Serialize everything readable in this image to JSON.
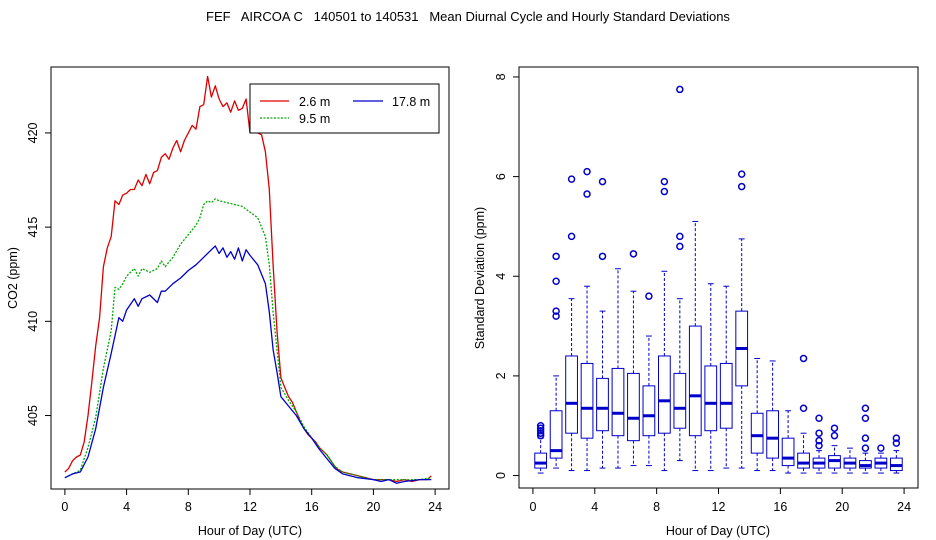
{
  "title": "FEF   AIRCOA C   140501 to 140531   Mean Diurnal Cycle and Hourly Standard Deviations",
  "chart_data": [
    {
      "type": "line",
      "xlabel": "Hour of Day (UTC)",
      "ylabel": "CO2 (ppm)",
      "xlim": [
        -0.9,
        24.9
      ],
      "ylim": [
        401.1,
        423.5
      ],
      "xticks": [
        "0",
        "4",
        "8",
        "12",
        "16",
        "20",
        "24"
      ],
      "yticks": [
        "405",
        "410",
        "415",
        "420"
      ],
      "legend_position": "top-right",
      "series": [
        {
          "name": "2.6 m",
          "color": "#dd0000",
          "style": "solid",
          "points": [
            [
              0,
              402.0
            ],
            [
              0.25,
              402.2
            ],
            [
              0.5,
              402.6
            ],
            [
              0.75,
              402.8
            ],
            [
              1,
              402.9
            ],
            [
              1.25,
              403.6
            ],
            [
              1.5,
              405.0
            ],
            [
              1.75,
              406.8
            ],
            [
              2,
              408.7
            ],
            [
              2.25,
              410.2
            ],
            [
              2.5,
              412.9
            ],
            [
              2.75,
              413.9
            ],
            [
              3,
              414.5
            ],
            [
              3.25,
              416.4
            ],
            [
              3.5,
              416.2
            ],
            [
              3.75,
              416.7
            ],
            [
              4,
              416.8
            ],
            [
              4.25,
              417.0
            ],
            [
              4.5,
              417.0
            ],
            [
              4.75,
              417.5
            ],
            [
              5,
              417.2
            ],
            [
              5.25,
              417.8
            ],
            [
              5.5,
              417.3
            ],
            [
              5.75,
              417.9
            ],
            [
              6,
              418.0
            ],
            [
              6.25,
              418.7
            ],
            [
              6.5,
              418.9
            ],
            [
              6.75,
              418.6
            ],
            [
              7,
              419.2
            ],
            [
              7.25,
              419.6
            ],
            [
              7.5,
              419.0
            ],
            [
              7.75,
              419.6
            ],
            [
              8,
              420.0
            ],
            [
              8.25,
              420.4
            ],
            [
              8.5,
              420.2
            ],
            [
              8.75,
              421.4
            ],
            [
              9,
              421.5
            ],
            [
              9.25,
              423.0
            ],
            [
              9.5,
              421.9
            ],
            [
              9.75,
              422.5
            ],
            [
              10,
              421.8
            ],
            [
              10.25,
              421.4
            ],
            [
              10.5,
              421.6
            ],
            [
              10.75,
              421.1
            ],
            [
              11,
              421.7
            ],
            [
              11.25,
              421.2
            ],
            [
              11.5,
              421.3
            ],
            [
              11.75,
              421.8
            ],
            [
              12,
              420.0
            ],
            [
              12.25,
              420.3
            ],
            [
              12.5,
              420.0
            ],
            [
              12.75,
              419.9
            ],
            [
              13,
              419.0
            ],
            [
              13.25,
              417.0
            ],
            [
              13.5,
              413.0
            ],
            [
              13.75,
              409.5
            ],
            [
              14,
              407.0
            ],
            [
              14.25,
              406.5
            ],
            [
              14.5,
              406.0
            ],
            [
              14.75,
              405.7
            ],
            [
              15,
              405.2
            ],
            [
              15.25,
              404.7
            ],
            [
              15.5,
              404.3
            ],
            [
              15.75,
              404.0
            ],
            [
              16,
              403.8
            ],
            [
              16.25,
              403.6
            ],
            [
              16.5,
              403.3
            ],
            [
              16.75,
              403.1
            ],
            [
              17,
              402.9
            ],
            [
              17.25,
              402.6
            ],
            [
              17.5,
              402.3
            ],
            [
              17.75,
              402.1
            ],
            [
              18,
              402.0
            ],
            [
              18.5,
              401.9
            ],
            [
              19,
              401.8
            ],
            [
              19.5,
              401.7
            ],
            [
              20,
              401.6
            ],
            [
              20.5,
              401.6
            ],
            [
              21,
              401.6
            ],
            [
              21.5,
              401.5
            ],
            [
              22,
              401.6
            ],
            [
              22.5,
              401.5
            ],
            [
              23,
              401.6
            ],
            [
              23.5,
              401.6
            ],
            [
              23.75,
              401.8
            ]
          ]
        },
        {
          "name": "9.5 m",
          "color": "#00aa00",
          "style": "dashed",
          "points": [
            [
              0,
              401.7
            ],
            [
              0.5,
              401.9
            ],
            [
              1,
              402.1
            ],
            [
              1.5,
              403.3
            ],
            [
              2,
              404.9
            ],
            [
              2.5,
              407.5
            ],
            [
              3,
              409.5
            ],
            [
              3.25,
              411.8
            ],
            [
              3.5,
              411.7
            ],
            [
              3.75,
              412.0
            ],
            [
              4,
              412.4
            ],
            [
              4.5,
              412.8
            ],
            [
              4.75,
              412.4
            ],
            [
              5,
              412.8
            ],
            [
              5.5,
              412.6
            ],
            [
              6,
              412.8
            ],
            [
              6.25,
              413.2
            ],
            [
              6.5,
              412.9
            ],
            [
              7,
              413.4
            ],
            [
              7.5,
              414.1
            ],
            [
              8,
              414.6
            ],
            [
              8.5,
              415.1
            ],
            [
              8.75,
              415.5
            ],
            [
              9,
              416.2
            ],
            [
              9.25,
              416.4
            ],
            [
              9.5,
              416.3
            ],
            [
              9.75,
              416.5
            ],
            [
              10,
              416.4
            ],
            [
              10.5,
              416.3
            ],
            [
              11,
              416.2
            ],
            [
              11.5,
              416.1
            ],
            [
              12,
              415.8
            ],
            [
              12.5,
              415.5
            ],
            [
              13,
              414.5
            ],
            [
              13.25,
              413.0
            ],
            [
              13.5,
              410.5
            ],
            [
              13.75,
              408.5
            ],
            [
              14,
              406.5
            ],
            [
              14.5,
              405.8
            ],
            [
              15,
              405.2
            ],
            [
              15.5,
              404.4
            ],
            [
              16,
              403.8
            ],
            [
              16.5,
              403.3
            ],
            [
              17,
              402.9
            ],
            [
              17.5,
              402.3
            ],
            [
              18,
              402.0
            ],
            [
              19,
              401.8
            ],
            [
              20,
              401.6
            ],
            [
              21,
              401.6
            ],
            [
              22,
              401.6
            ],
            [
              23,
              401.6
            ],
            [
              23.75,
              401.7
            ]
          ]
        },
        {
          "name": "17.8 m",
          "color": "#0000cc",
          "style": "solid",
          "points": [
            [
              0,
              401.7
            ],
            [
              0.5,
              401.9
            ],
            [
              1,
              402.0
            ],
            [
              1.5,
              402.8
            ],
            [
              2,
              404.3
            ],
            [
              2.5,
              406.5
            ],
            [
              3,
              408.3
            ],
            [
              3.5,
              410.2
            ],
            [
              3.75,
              410.0
            ],
            [
              4,
              410.6
            ],
            [
              4.5,
              411.2
            ],
            [
              4.75,
              410.8
            ],
            [
              5,
              411.2
            ],
            [
              5.5,
              411.4
            ],
            [
              6,
              411.0
            ],
            [
              6.25,
              411.6
            ],
            [
              6.5,
              411.6
            ],
            [
              7,
              412.0
            ],
            [
              7.5,
              412.3
            ],
            [
              8,
              412.7
            ],
            [
              8.5,
              413.0
            ],
            [
              9,
              413.4
            ],
            [
              9.5,
              413.8
            ],
            [
              9.75,
              414.0
            ],
            [
              10,
              413.6
            ],
            [
              10.25,
              413.9
            ],
            [
              10.5,
              413.4
            ],
            [
              10.75,
              413.7
            ],
            [
              11,
              413.3
            ],
            [
              11.25,
              413.9
            ],
            [
              11.5,
              413.2
            ],
            [
              11.75,
              413.8
            ],
            [
              12,
              413.5
            ],
            [
              12.5,
              413.0
            ],
            [
              13,
              412.0
            ],
            [
              13.25,
              410.5
            ],
            [
              13.5,
              408.5
            ],
            [
              13.75,
              407.3
            ],
            [
              14,
              406.0
            ],
            [
              14.5,
              405.5
            ],
            [
              15,
              405.0
            ],
            [
              15.5,
              404.3
            ],
            [
              16,
              403.8
            ],
            [
              16.5,
              403.2
            ],
            [
              17,
              402.7
            ],
            [
              17.5,
              402.2
            ],
            [
              18,
              401.9
            ],
            [
              19,
              401.7
            ],
            [
              20,
              401.6
            ],
            [
              20.5,
              401.5
            ],
            [
              21,
              401.6
            ],
            [
              21.5,
              401.4
            ],
            [
              22,
              401.5
            ],
            [
              23,
              401.6
            ],
            [
              23.75,
              401.6
            ]
          ]
        }
      ]
    },
    {
      "type": "box",
      "xlabel": "Hour of Day (UTC)",
      "ylabel": "Standard Deviation (ppm)",
      "xlim": [
        -0.9,
        24.9
      ],
      "ylim": [
        -0.25,
        8.2
      ],
      "xticks": [
        "0",
        "4",
        "8",
        "12",
        "16",
        "20",
        "24"
      ],
      "yticks": [
        "0",
        "2",
        "4",
        "6",
        "8"
      ],
      "color": "#0000cc",
      "boxes": [
        {
          "hour": 0.5,
          "min": 0.05,
          "q1": 0.15,
          "median": 0.25,
          "q3": 0.45,
          "max": 0.75,
          "outliers": [
            0.8,
            0.85,
            0.9,
            0.95,
            1.0
          ]
        },
        {
          "hour": 1.5,
          "min": 0.15,
          "q1": 0.35,
          "median": 0.5,
          "q3": 1.3,
          "max": 2.0,
          "outliers": [
            3.2,
            3.3,
            3.9,
            4.4
          ]
        },
        {
          "hour": 2.5,
          "min": 0.1,
          "q1": 0.85,
          "median": 1.45,
          "q3": 2.4,
          "max": 3.55,
          "outliers": [
            4.8,
            5.95
          ]
        },
        {
          "hour": 3.5,
          "min": 0.1,
          "q1": 0.75,
          "median": 1.35,
          "q3": 2.25,
          "max": 3.8,
          "outliers": [
            5.65,
            6.1
          ]
        },
        {
          "hour": 4.5,
          "min": 0.15,
          "q1": 0.9,
          "median": 1.35,
          "q3": 1.95,
          "max": 3.3,
          "outliers": [
            4.4,
            5.9
          ]
        },
        {
          "hour": 5.5,
          "min": 0.15,
          "q1": 0.8,
          "median": 1.25,
          "q3": 2.15,
          "max": 4.15,
          "outliers": []
        },
        {
          "hour": 6.5,
          "min": 0.2,
          "q1": 0.7,
          "median": 1.15,
          "q3": 2.05,
          "max": 3.7,
          "outliers": [
            4.45
          ]
        },
        {
          "hour": 7.5,
          "min": 0.2,
          "q1": 0.8,
          "median": 1.2,
          "q3": 1.8,
          "max": 2.8,
          "outliers": [
            3.6
          ]
        },
        {
          "hour": 8.5,
          "min": 0.1,
          "q1": 0.85,
          "median": 1.5,
          "q3": 2.4,
          "max": 4.1,
          "outliers": [
            5.7,
            5.9
          ]
        },
        {
          "hour": 9.5,
          "min": 0.3,
          "q1": 0.95,
          "median": 1.35,
          "q3": 2.05,
          "max": 3.55,
          "outliers": [
            4.6,
            4.8,
            7.75
          ]
        },
        {
          "hour": 10.5,
          "min": 0.1,
          "q1": 0.8,
          "median": 1.6,
          "q3": 3.0,
          "max": 5.1,
          "outliers": []
        },
        {
          "hour": 11.5,
          "min": 0.1,
          "q1": 0.9,
          "median": 1.45,
          "q3": 2.2,
          "max": 3.85,
          "outliers": []
        },
        {
          "hour": 12.5,
          "min": 0.15,
          "q1": 0.95,
          "median": 1.45,
          "q3": 2.25,
          "max": 3.8,
          "outliers": []
        },
        {
          "hour": 13.5,
          "min": 0.15,
          "q1": 1.8,
          "median": 2.55,
          "q3": 3.3,
          "max": 4.75,
          "outliers": [
            5.8,
            6.05
          ]
        },
        {
          "hour": 14.5,
          "min": 0.1,
          "q1": 0.45,
          "median": 0.8,
          "q3": 1.25,
          "max": 2.35,
          "outliers": []
        },
        {
          "hour": 15.5,
          "min": 0.1,
          "q1": 0.35,
          "median": 0.75,
          "q3": 1.3,
          "max": 2.3,
          "outliers": []
        },
        {
          "hour": 16.5,
          "min": 0.05,
          "q1": 0.2,
          "median": 0.35,
          "q3": 0.75,
          "max": 1.3,
          "outliers": []
        },
        {
          "hour": 17.5,
          "min": 0.05,
          "q1": 0.15,
          "median": 0.25,
          "q3": 0.45,
          "max": 0.85,
          "outliers": [
            1.35,
            2.35
          ]
        },
        {
          "hour": 18.5,
          "min": 0.05,
          "q1": 0.15,
          "median": 0.25,
          "q3": 0.35,
          "max": 0.5,
          "outliers": [
            0.6,
            0.7,
            0.85,
            1.15
          ]
        },
        {
          "hour": 19.5,
          "min": 0.05,
          "q1": 0.15,
          "median": 0.3,
          "q3": 0.4,
          "max": 0.6,
          "outliers": [
            0.8,
            0.95
          ]
        },
        {
          "hour": 20.5,
          "min": 0.05,
          "q1": 0.15,
          "median": 0.25,
          "q3": 0.35,
          "max": 0.55,
          "outliers": []
        },
        {
          "hour": 21.5,
          "min": 0.05,
          "q1": 0.15,
          "median": 0.2,
          "q3": 0.3,
          "max": 0.45,
          "outliers": [
            0.55,
            0.75,
            1.15,
            1.35
          ]
        },
        {
          "hour": 22.5,
          "min": 0.05,
          "q1": 0.15,
          "median": 0.25,
          "q3": 0.35,
          "max": 0.45,
          "outliers": [
            0.55
          ]
        },
        {
          "hour": 23.5,
          "min": 0.05,
          "q1": 0.1,
          "median": 0.2,
          "q3": 0.35,
          "max": 0.5,
          "outliers": [
            0.65,
            0.75
          ]
        }
      ]
    }
  ]
}
